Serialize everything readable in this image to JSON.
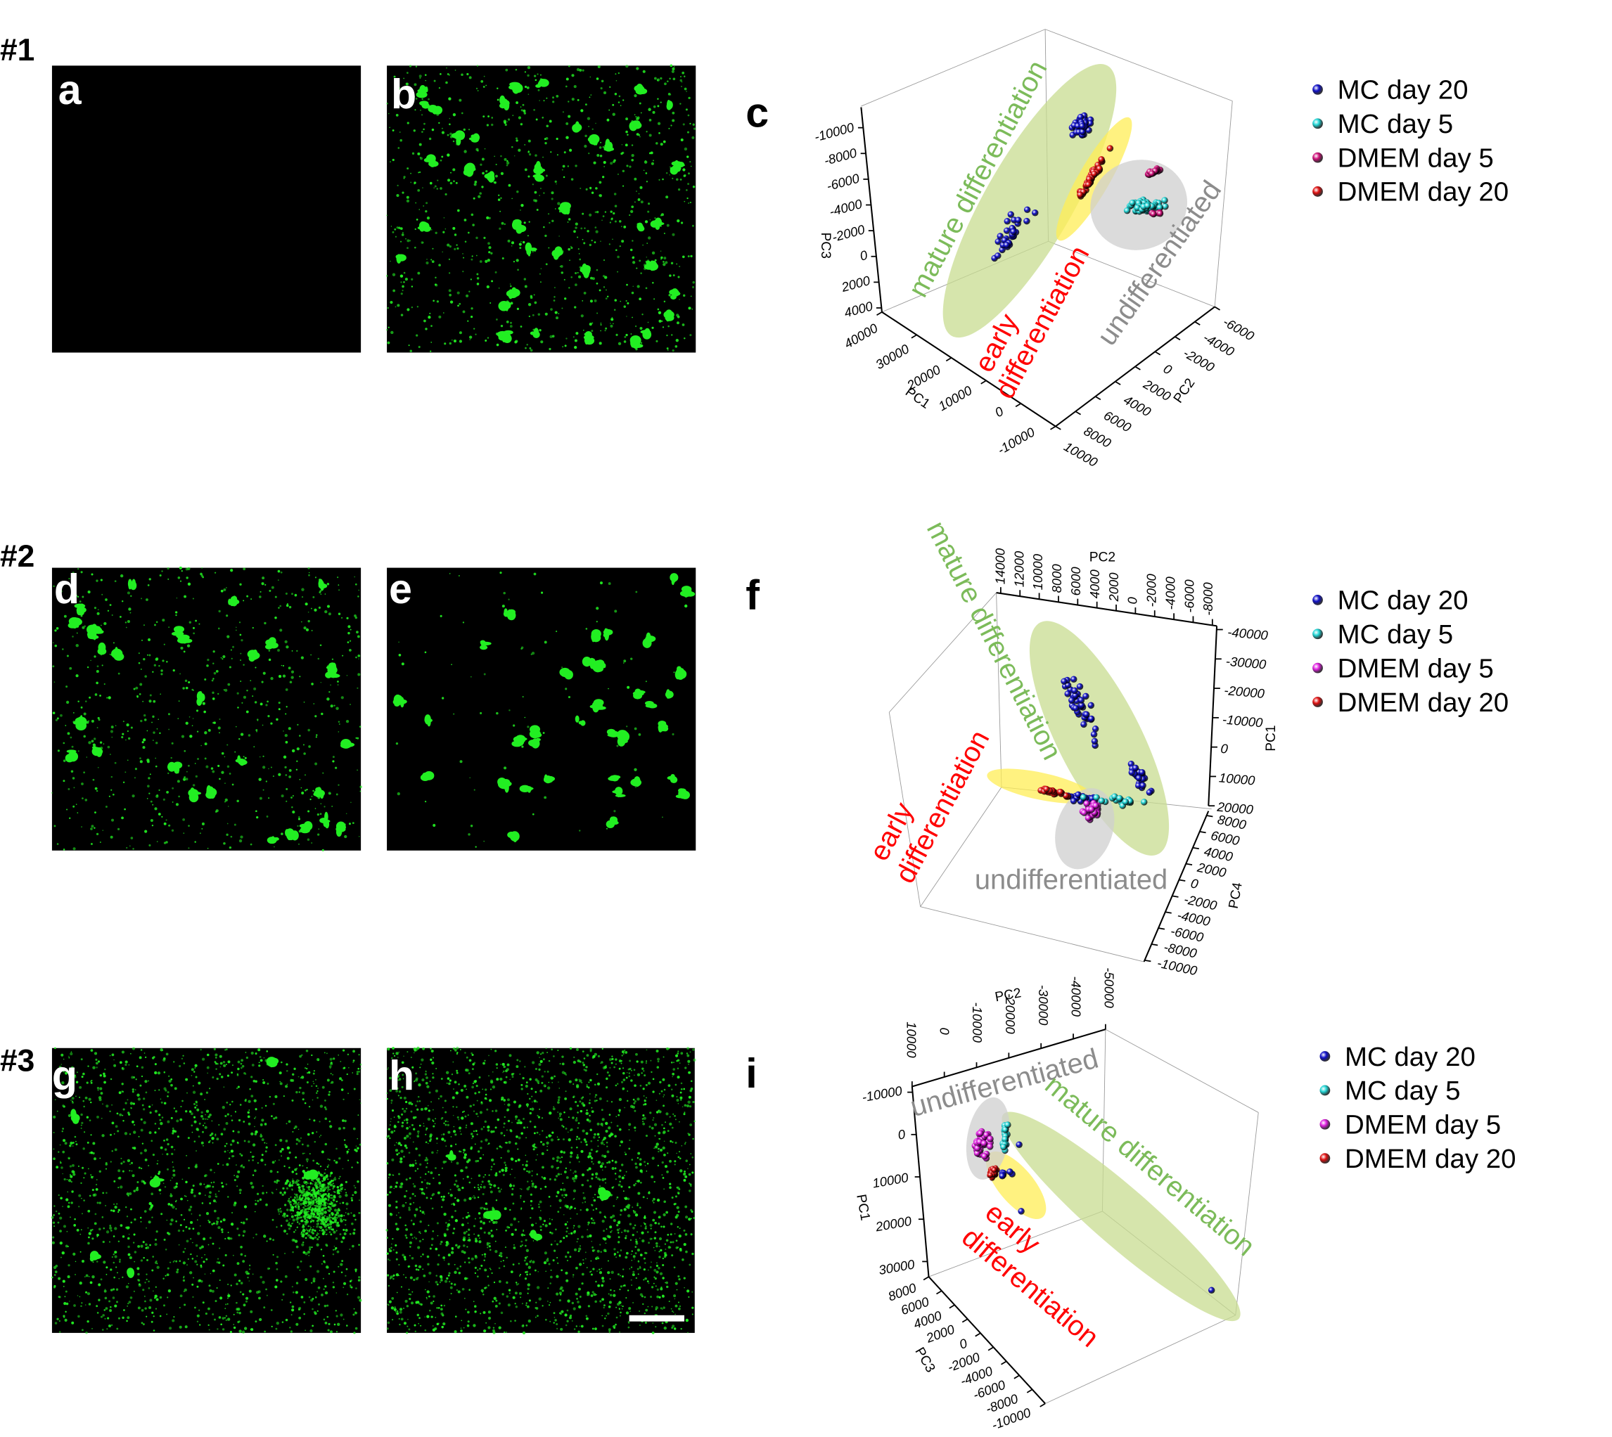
{
  "rows": [
    {
      "label": "#1",
      "images": [
        {
          "letter": "a",
          "signal": "none"
        },
        {
          "letter": "b",
          "signal": "dense clusters"
        }
      ],
      "plot_letter": "c"
    },
    {
      "label": "#2",
      "images": [
        {
          "letter": "d",
          "signal": "fibrous clusters"
        },
        {
          "letter": "e",
          "signal": "sparse spots"
        }
      ],
      "plot_letter": "f"
    },
    {
      "label": "#3",
      "images": [
        {
          "letter": "g",
          "signal": "fine speckles"
        },
        {
          "letter": "h",
          "signal": "fine speckles",
          "scale_bar": true
        }
      ],
      "plot_letter": "i"
    }
  ],
  "colors": {
    "fluorescence": "#22ee22",
    "MC day 20": "#1010c8",
    "MC day 5": "#22d6d6",
    "DMEM day 5 (c)": "#d0107a",
    "DMEM day 5": "#e020e0",
    "DMEM day 20": "#e01010",
    "mature": "#c8dc90",
    "early": "#ffee55",
    "undiff": "#cfcfcf",
    "mature_text": "#7cbb5a",
    "early_text": "#ff0000",
    "undiff_text": "#8c8c8c"
  },
  "legend": [
    "MC day 20",
    "MC day 5",
    "DMEM day 5",
    "DMEM day 20"
  ],
  "clusters": {
    "mature": "mature differentiation",
    "early_1": "early",
    "early_2": "differentiation",
    "undiff": "undifferentiated"
  },
  "chart_data": [
    {
      "type": "scatter",
      "panel": "c",
      "projection": "3d",
      "axes": {
        "x": {
          "label": "PC1",
          "ticks": [
            "40000",
            "30000",
            "20000",
            "10000",
            "0",
            "-10000"
          ]
        },
        "y": {
          "label": "PC2",
          "ticks": [
            "10000",
            "8000",
            "6000",
            "4000",
            "2000",
            "0",
            "-2000",
            "-4000",
            "-6000"
          ]
        },
        "z": {
          "label": "PC3",
          "ticks": [
            "4000",
            "2000",
            "0",
            "-2000",
            "-4000",
            "-6000",
            "-8000",
            "-10000"
          ]
        }
      },
      "legend": [
        "MC day 20",
        "MC day 5",
        "DMEM day 5",
        "DMEM day 20"
      ],
      "legend_placement": "right",
      "annotations": [
        "mature differentiation",
        "early differentiation",
        "undifferentiated"
      ],
      "grid": false
    },
    {
      "type": "scatter",
      "panel": "f",
      "projection": "3d",
      "axes": {
        "x": {
          "label": "PC2",
          "ticks": [
            "14000",
            "12000",
            "10000",
            "8000",
            "6000",
            "4000",
            "2000",
            "0",
            "-2000",
            "-4000",
            "-6000",
            "-8000"
          ]
        },
        "y": {
          "label": "PC1",
          "ticks": [
            "-40000",
            "-30000",
            "-20000",
            "-10000",
            "0",
            "10000",
            "20000"
          ]
        },
        "z": {
          "label": "PC4",
          "ticks": [
            "8000",
            "6000",
            "4000",
            "2000",
            "0",
            "-2000",
            "-4000",
            "-6000",
            "-8000",
            "-10000"
          ]
        }
      },
      "legend": [
        "MC day 20",
        "MC day 5",
        "DMEM day 5",
        "DMEM day 20"
      ],
      "legend_placement": "right",
      "annotations": [
        "mature differentiation",
        "early differentiation",
        "undifferentiated"
      ],
      "grid": false
    },
    {
      "type": "scatter",
      "panel": "i",
      "projection": "3d",
      "axes": {
        "x": {
          "label": "PC2",
          "ticks": [
            "10000",
            "0",
            "-10000",
            "-20000",
            "-30000",
            "-40000",
            "-50000"
          ]
        },
        "y": {
          "label": "PC1",
          "ticks": [
            "-10000",
            "0",
            "10000",
            "20000",
            "30000"
          ]
        },
        "z": {
          "label": "PC3",
          "ticks": [
            "8000",
            "6000",
            "4000",
            "2000",
            "0",
            "-2000",
            "-4000",
            "-6000",
            "-8000",
            "-10000"
          ]
        }
      },
      "legend": [
        "MC day 20",
        "MC day 5",
        "DMEM day 5",
        "DMEM day 20"
      ],
      "legend_placement": "right",
      "annotations": [
        "undifferentiated",
        "mature differentiation",
        "early differentiation"
      ],
      "grid": false
    }
  ]
}
